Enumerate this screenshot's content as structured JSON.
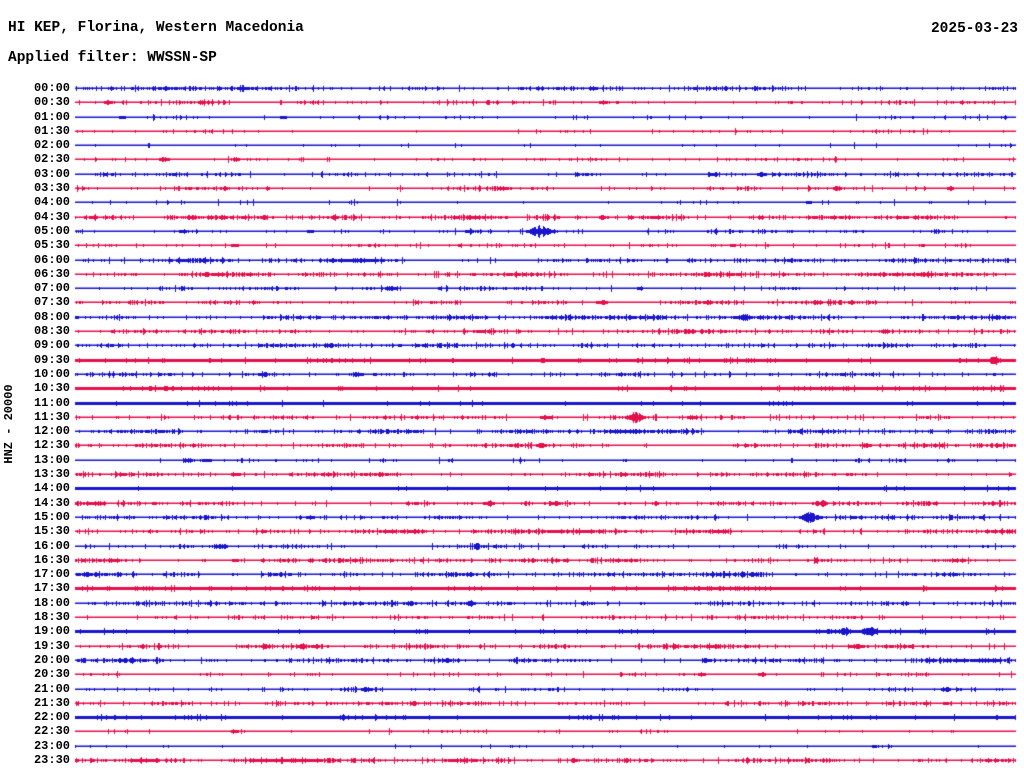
{
  "header": {
    "station": "HI KEP, Florina, Western Macedonia",
    "filter": "Applied filter: WWSSN-SP",
    "date": "2025-03-23"
  },
  "colors": {
    "blue": "#1914CD",
    "red": "#E60F4C",
    "text": "#000000",
    "background": "#FFFFFF"
  },
  "chart_data": {
    "type": "line",
    "subtype": "helicorder-seismogram",
    "title": "HI KEP, Florina, Western Macedonia",
    "filter": "WWSSN-SP",
    "date": "2025-03-23",
    "ylabel": "HNZ - 20000",
    "channel": "HNZ",
    "scale": 20000,
    "row_interval_minutes": 30,
    "trace_colors_alternate": [
      "blue",
      "red"
    ],
    "legend": "none",
    "grid": false,
    "notable_events": [
      {
        "row": "05:00",
        "x_fraction": 0.494,
        "amplitude": 6
      },
      {
        "row": "11:30",
        "x_fraction": 0.595,
        "amplitude": 5
      },
      {
        "row": "15:00",
        "x_fraction": 0.781,
        "amplitude": 5
      },
      {
        "row": "19:00",
        "x_fraction": 0.845,
        "amplitude": 5
      },
      {
        "row": "09:30",
        "x_fraction": 0.978,
        "amplitude": 4
      }
    ],
    "rows": [
      {
        "time": "00:00",
        "color": "blue",
        "noise": 0.45,
        "amp": 1,
        "thick": false,
        "bursts": [
          [
            0.18,
            2
          ],
          [
            0.55,
            1.8
          ]
        ]
      },
      {
        "time": "00:30",
        "color": "red",
        "noise": 0.25,
        "amp": 1,
        "thick": false,
        "bursts": [
          [
            0.035,
            2
          ],
          [
            0.56,
            1.8
          ]
        ]
      },
      {
        "time": "01:00",
        "color": "blue",
        "noise": 0.12,
        "amp": 1,
        "thick": false,
        "bursts": [
          [
            0.05,
            1.5
          ],
          [
            0.22,
            1.5
          ]
        ]
      },
      {
        "time": "01:30",
        "color": "red",
        "noise": 0.08,
        "amp": 1,
        "thick": false,
        "bursts": []
      },
      {
        "time": "02:00",
        "color": "blue",
        "noise": 0.06,
        "amp": 1,
        "thick": false,
        "bursts": []
      },
      {
        "time": "02:30",
        "color": "red",
        "noise": 0.15,
        "amp": 1,
        "thick": false,
        "bursts": [
          [
            0.095,
            2
          ],
          [
            0.17,
            1.6
          ]
        ]
      },
      {
        "time": "03:00",
        "color": "blue",
        "noise": 0.32,
        "amp": 1,
        "thick": false,
        "bursts": [
          [
            0.68,
            1.8
          ],
          [
            0.73,
            1.8
          ]
        ]
      },
      {
        "time": "03:30",
        "color": "red",
        "noise": 0.22,
        "amp": 1,
        "thick": false,
        "bursts": [
          [
            0.455,
            1.8
          ],
          [
            0.81,
            2.3
          ],
          [
            0.93,
            1.8
          ]
        ]
      },
      {
        "time": "04:00",
        "color": "blue",
        "noise": 0.07,
        "amp": 1,
        "thick": false,
        "bursts": [
          [
            0.78,
            1.5
          ]
        ]
      },
      {
        "time": "04:30",
        "color": "red",
        "noise": 0.5,
        "amp": 1,
        "thick": false,
        "bursts": [
          [
            0.02,
            2
          ],
          [
            0.2,
            2
          ],
          [
            0.56,
            1.8
          ]
        ]
      },
      {
        "time": "05:00",
        "color": "blue",
        "noise": 0.18,
        "amp": 1,
        "thick": false,
        "bursts": [
          [
            0.115,
            2
          ],
          [
            0.25,
            1.5
          ],
          [
            0.42,
            2
          ],
          [
            0.494,
            6
          ]
        ]
      },
      {
        "time": "05:30",
        "color": "red",
        "noise": 0.12,
        "amp": 1,
        "thick": false,
        "bursts": [
          [
            0.17,
            1.5
          ],
          [
            0.7,
            1.5
          ],
          [
            0.9,
            1.5
          ]
        ]
      },
      {
        "time": "06:00",
        "color": "blue",
        "noise": 0.55,
        "amp": 1,
        "thick": false,
        "bursts": []
      },
      {
        "time": "06:30",
        "color": "red",
        "noise": 0.5,
        "amp": 1,
        "thick": false,
        "bursts": [
          [
            0.9,
            1.8
          ]
        ]
      },
      {
        "time": "07:00",
        "color": "blue",
        "noise": 0.3,
        "amp": 1,
        "thick": false,
        "bursts": [
          [
            0.335,
            2.4
          ],
          [
            0.6,
            1.8
          ]
        ]
      },
      {
        "time": "07:30",
        "color": "red",
        "noise": 0.35,
        "amp": 1,
        "thick": false,
        "bursts": [
          [
            0.56,
            2.4
          ],
          [
            0.79,
            1.8
          ]
        ]
      },
      {
        "time": "08:00",
        "color": "blue",
        "noise": 0.5,
        "amp": 1,
        "thick": false,
        "bursts": [
          [
            0.712,
            2.8
          ]
        ]
      },
      {
        "time": "08:30",
        "color": "red",
        "noise": 0.35,
        "amp": 1,
        "thick": false,
        "bursts": [
          [
            0.861,
            2.4
          ]
        ]
      },
      {
        "time": "09:00",
        "color": "blue",
        "noise": 0.45,
        "amp": 1,
        "thick": false,
        "bursts": [
          [
            0.27,
            2.4
          ]
        ]
      },
      {
        "time": "09:30",
        "color": "red",
        "noise": 0.4,
        "amp": 1,
        "thick": true,
        "bursts": [
          [
            0.978,
            4
          ]
        ]
      },
      {
        "time": "10:00",
        "color": "blue",
        "noise": 0.35,
        "amp": 1,
        "thick": false,
        "bursts": [
          [
            0.2,
            1.8
          ],
          [
            0.3,
            1.8
          ]
        ]
      },
      {
        "time": "10:30",
        "color": "red",
        "noise": 0.45,
        "amp": 1,
        "thick": true,
        "bursts": [
          [
            0.956,
            2.4
          ]
        ]
      },
      {
        "time": "11:00",
        "color": "blue",
        "noise": 0.25,
        "amp": 1,
        "thick": true,
        "bursts": []
      },
      {
        "time": "11:30",
        "color": "red",
        "noise": 0.3,
        "amp": 1,
        "thick": false,
        "bursts": [
          [
            0.5,
            2.4
          ],
          [
            0.595,
            5
          ],
          [
            0.655,
            1.8
          ]
        ]
      },
      {
        "time": "12:00",
        "color": "blue",
        "noise": 0.5,
        "amp": 1,
        "thick": false,
        "bursts": [
          [
            0.2,
            1.8
          ]
        ]
      },
      {
        "time": "12:30",
        "color": "red",
        "noise": 0.4,
        "amp": 1,
        "thick": false,
        "bursts": [
          [
            0.495,
            2.4
          ],
          [
            0.84,
            2.4
          ]
        ]
      },
      {
        "time": "13:00",
        "color": "blue",
        "noise": 0.12,
        "amp": 1,
        "thick": false,
        "bursts": [
          [
            0.12,
            1.8
          ],
          [
            0.14,
            1.8
          ]
        ]
      },
      {
        "time": "13:30",
        "color": "red",
        "noise": 0.4,
        "amp": 1,
        "thick": false,
        "bursts": [
          [
            0.17,
            1.8
          ]
        ]
      },
      {
        "time": "14:00",
        "color": "blue",
        "noise": 0.15,
        "amp": 1,
        "thick": true,
        "bursts": []
      },
      {
        "time": "14:30",
        "color": "red",
        "noise": 0.4,
        "amp": 1,
        "thick": false,
        "bursts": [
          [
            0.44,
            2.4
          ],
          [
            0.51,
            2.4
          ],
          [
            0.792,
            3.4
          ]
        ]
      },
      {
        "time": "15:00",
        "color": "blue",
        "noise": 0.3,
        "amp": 1,
        "thick": false,
        "bursts": [
          [
            0.25,
            1.8
          ],
          [
            0.781,
            5
          ]
        ]
      },
      {
        "time": "15:30",
        "color": "red",
        "noise": 0.5,
        "amp": 1,
        "thick": false,
        "bursts": [
          [
            0.2,
            1.8
          ]
        ]
      },
      {
        "time": "16:00",
        "color": "blue",
        "noise": 0.25,
        "amp": 1,
        "thick": false,
        "bursts": [
          [
            0.155,
            2.4
          ]
        ]
      },
      {
        "time": "16:30",
        "color": "red",
        "noise": 0.45,
        "amp": 1,
        "thick": false,
        "bursts": [
          [
            0.17,
            1.8
          ],
          [
            0.25,
            1.8
          ]
        ]
      },
      {
        "time": "17:00",
        "color": "blue",
        "noise": 0.45,
        "amp": 1,
        "thick": false,
        "bursts": [
          [
            0.72,
            2.4
          ]
        ]
      },
      {
        "time": "17:30",
        "color": "red",
        "noise": 0.35,
        "amp": 1,
        "thick": true,
        "bursts": []
      },
      {
        "time": "18:00",
        "color": "blue",
        "noise": 0.35,
        "amp": 1,
        "thick": false,
        "bursts": [
          [
            0.356,
            2
          ],
          [
            0.42,
            2.4
          ]
        ]
      },
      {
        "time": "18:30",
        "color": "red",
        "noise": 0.28,
        "amp": 1,
        "thick": false,
        "bursts": []
      },
      {
        "time": "19:00",
        "color": "blue",
        "noise": 0.3,
        "amp": 1,
        "thick": true,
        "bursts": [
          [
            0.04,
            1.8
          ],
          [
            0.42,
            1.8
          ],
          [
            0.818,
            3.6
          ],
          [
            0.845,
            4.6
          ]
        ]
      },
      {
        "time": "19:30",
        "color": "red",
        "noise": 0.4,
        "amp": 1,
        "thick": false,
        "bursts": [
          [
            0.09,
            1.6
          ],
          [
            0.24,
            2
          ],
          [
            0.83,
            2.8
          ]
        ]
      },
      {
        "time": "20:00",
        "color": "blue",
        "noise": 0.5,
        "amp": 1,
        "thick": false,
        "bursts": [
          [
            0.67,
            1.8
          ]
        ]
      },
      {
        "time": "20:30",
        "color": "red",
        "noise": 0.15,
        "amp": 1,
        "thick": false,
        "bursts": [
          [
            0.665,
            1.8
          ],
          [
            0.73,
            1.8
          ]
        ]
      },
      {
        "time": "21:00",
        "color": "blue",
        "noise": 0.2,
        "amp": 1,
        "thick": false,
        "bursts": [
          [
            0.31,
            2.4
          ],
          [
            0.925,
            2.4
          ]
        ]
      },
      {
        "time": "21:30",
        "color": "red",
        "noise": 0.35,
        "amp": 1,
        "thick": false,
        "bursts": [
          [
            0.36,
            1.8
          ],
          [
            0.925,
            1.8
          ]
        ]
      },
      {
        "time": "22:00",
        "color": "blue",
        "noise": 0.35,
        "amp": 1,
        "thick": true,
        "bursts": [
          [
            0.22,
            1.8
          ],
          [
            0.35,
            1.8
          ]
        ]
      },
      {
        "time": "22:30",
        "color": "red",
        "noise": 0.12,
        "amp": 1,
        "thick": false,
        "bursts": [
          [
            0.17,
            1.8
          ]
        ]
      },
      {
        "time": "23:00",
        "color": "blue",
        "noise": 0.05,
        "amp": 1,
        "thick": false,
        "bursts": [
          [
            0.85,
            1.5
          ]
        ]
      },
      {
        "time": "23:30",
        "color": "red",
        "noise": 0.65,
        "amp": 1,
        "thick": false,
        "bursts": [
          [
            0.23,
            1.8
          ],
          [
            0.53,
            1.8
          ]
        ]
      }
    ]
  }
}
